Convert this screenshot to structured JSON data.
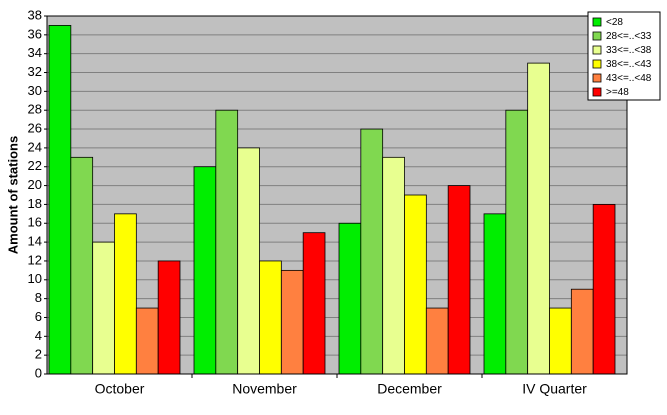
{
  "chart_data": {
    "type": "bar",
    "y_label": "Amount of stations",
    "categories": [
      "October",
      "November",
      "December",
      "IV Quarter"
    ],
    "series": [
      {
        "name": "<28",
        "color": "#00ee00",
        "values": [
          37,
          22,
          16,
          17
        ]
      },
      {
        "name": "28<=..<33",
        "color": "#80d850",
        "values": [
          23,
          28,
          26,
          28
        ]
      },
      {
        "name": "33<=..<38",
        "color": "#e8ff90",
        "values": [
          14,
          24,
          23,
          33
        ]
      },
      {
        "name": "38<=..<43",
        "color": "#ffff00",
        "values": [
          17,
          12,
          19,
          7
        ]
      },
      {
        "name": "43<=..<48",
        "color": "#ff8040",
        "values": [
          7,
          11,
          7,
          9
        ]
      },
      {
        "name": ">=48",
        "color": "#ff0000",
        "values": [
          12,
          15,
          20,
          18
        ]
      }
    ],
    "ylim": [
      0,
      38
    ],
    "yticks": [
      0,
      2,
      4,
      6,
      8,
      10,
      12,
      14,
      16,
      18,
      20,
      22,
      24,
      26,
      28,
      30,
      32,
      34,
      36,
      38
    ],
    "grid": true,
    "legend": "top-right"
  }
}
